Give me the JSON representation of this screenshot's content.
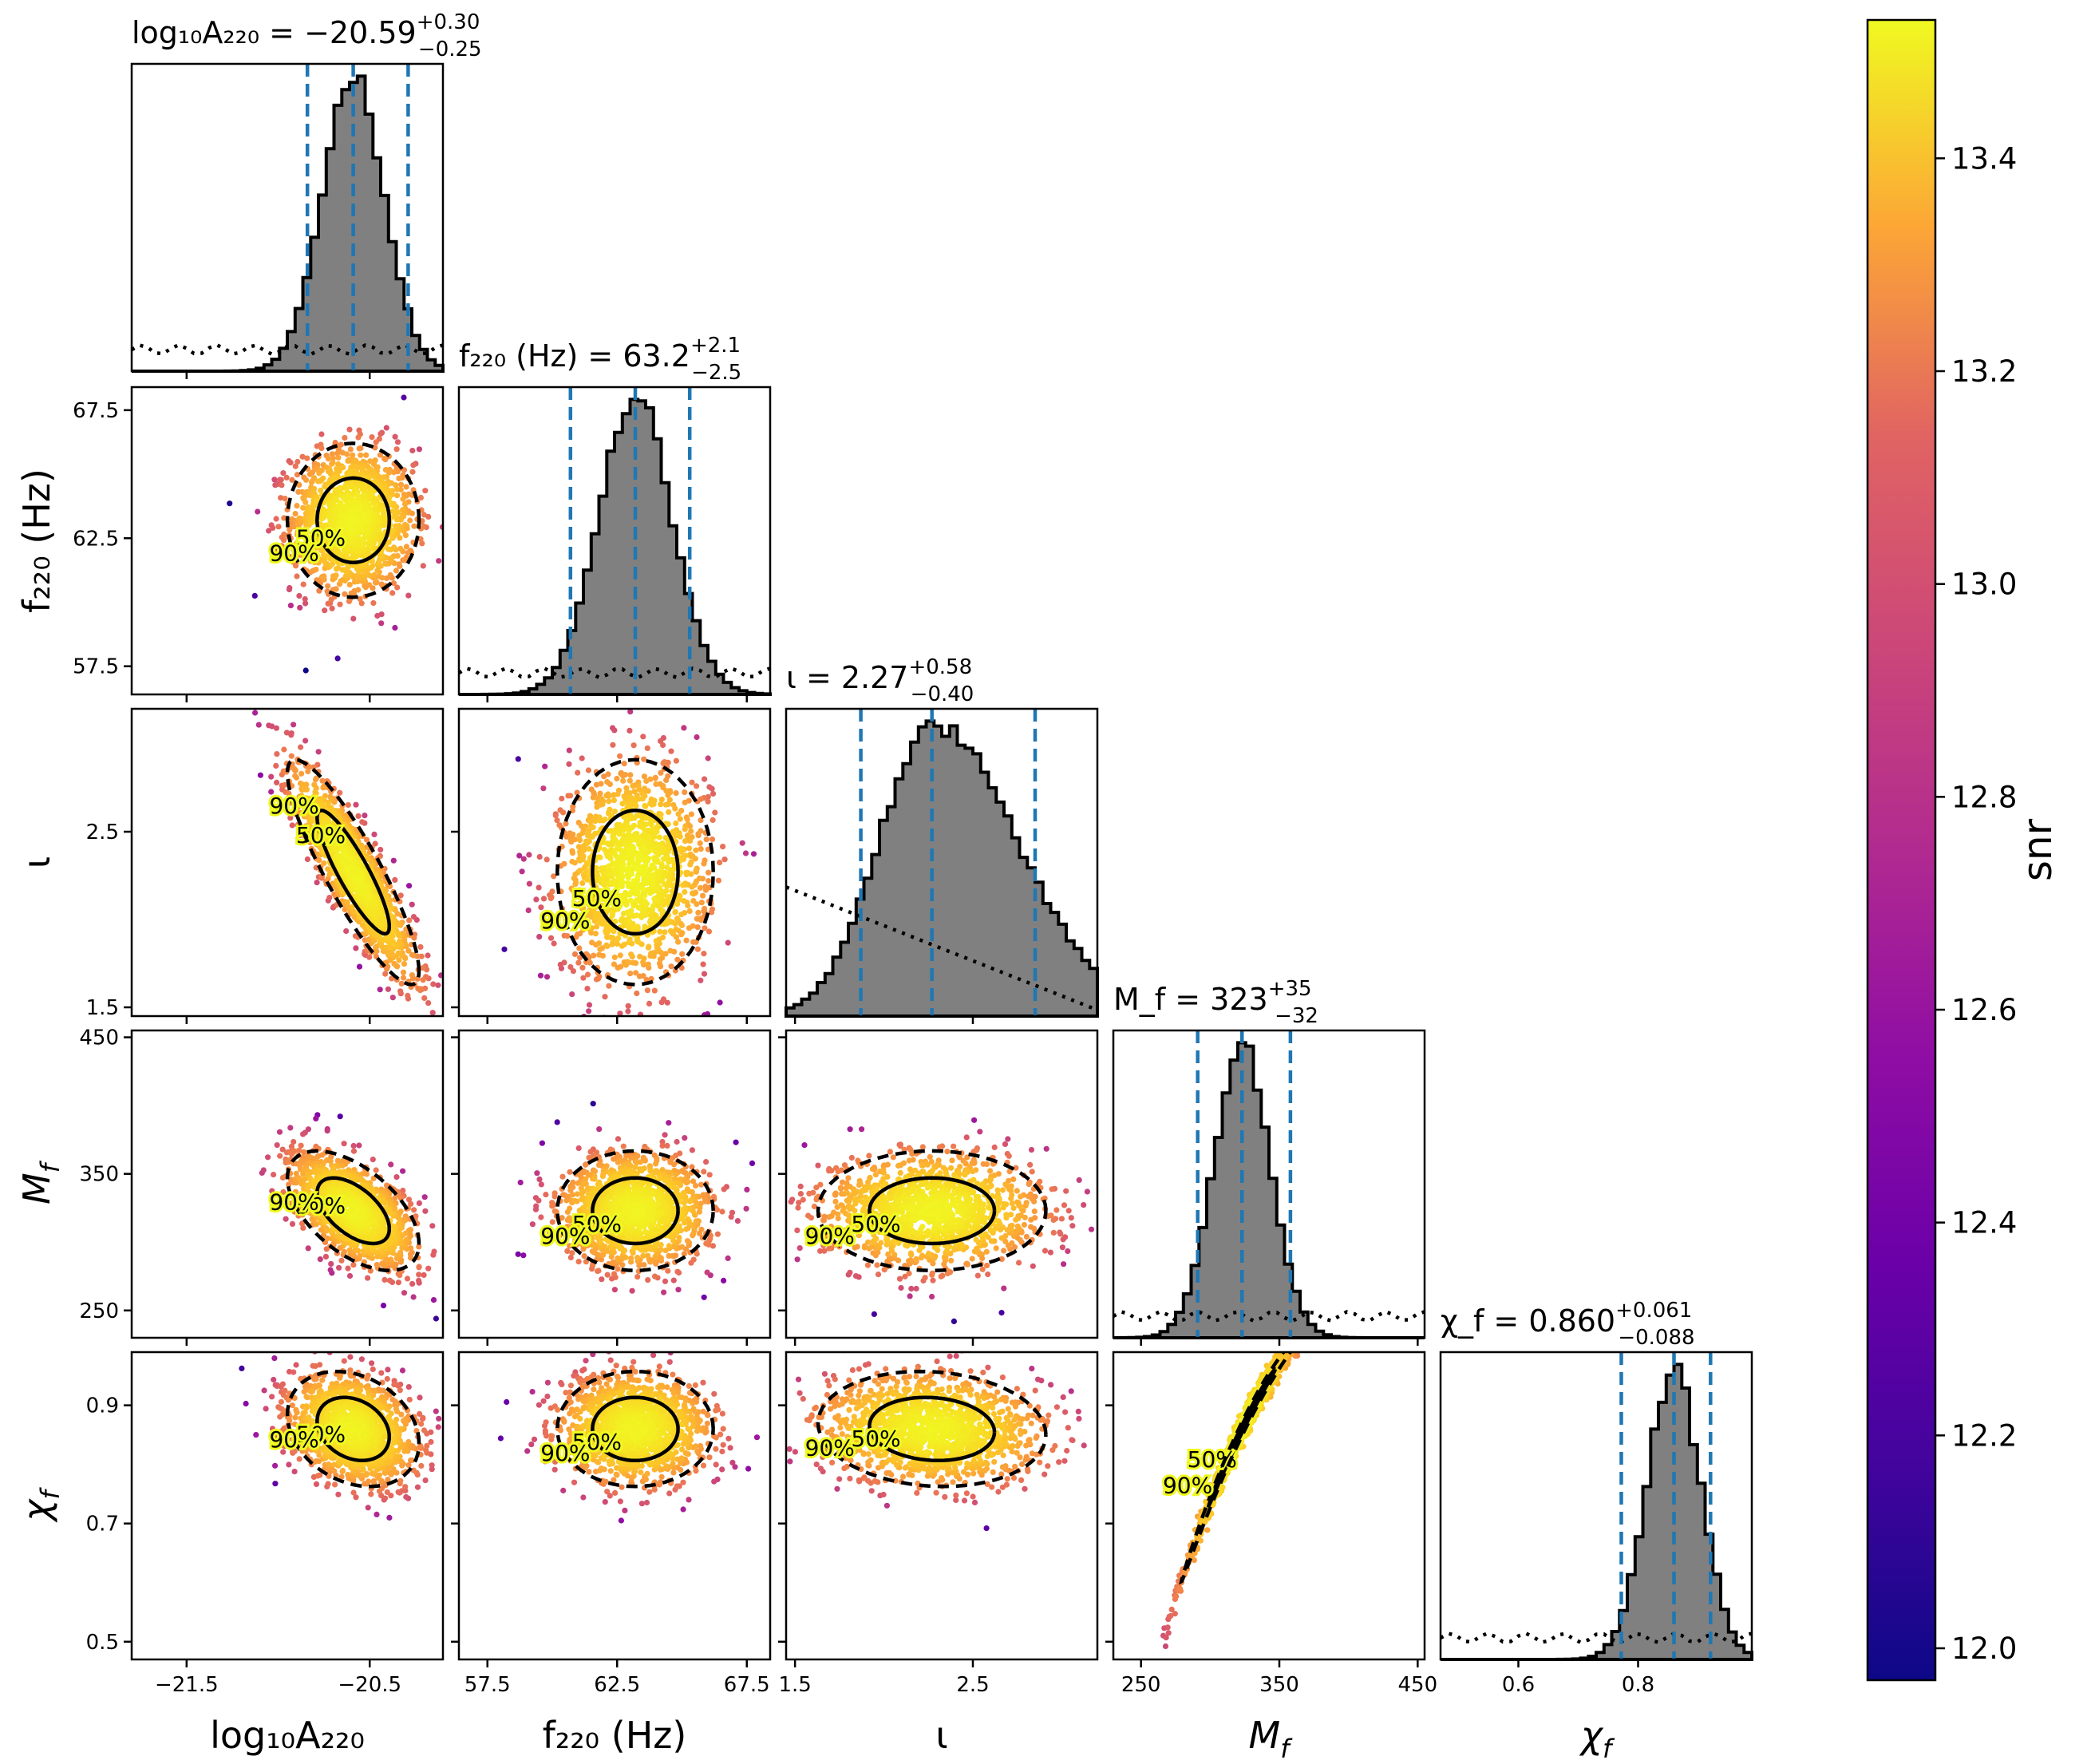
{
  "chart_data": {
    "type": "corner",
    "parameters": [
      {
        "key": "log10A220",
        "label": "log₁₀A₂₂₀",
        "title": "log₁₀A₂₂₀ = −20.59",
        "median": -20.59,
        "plus": "+0.30",
        "minus": "−0.25",
        "lo": -20.84,
        "hi": -20.29,
        "range": [
          -21.8,
          -20.1
        ],
        "ticks": [
          -21.5,
          -20.5
        ],
        "tick_labels": [
          "−21.5",
          "−20.5"
        ]
      },
      {
        "key": "f220",
        "label": "f₂₂₀ (Hz)",
        "title": "f₂₂₀ (Hz) = 63.2",
        "median": 63.2,
        "plus": "+2.1",
        "minus": "−2.5",
        "lo": 60.7,
        "hi": 65.3,
        "range": [
          56.4,
          68.4
        ],
        "ticks": [
          57.5,
          62.5,
          67.5
        ],
        "tick_labels": [
          "57.5",
          "62.5",
          "67.5"
        ]
      },
      {
        "key": "iota",
        "label": "ι",
        "title": "ι = 2.27",
        "median": 2.27,
        "plus": "+0.58",
        "minus": "−0.40",
        "lo": 1.87,
        "hi": 2.85,
        "range": [
          1.45,
          3.2
        ],
        "ticks": [
          1.5,
          2.5
        ],
        "tick_labels": [
          "1.5",
          "2.5"
        ]
      },
      {
        "key": "Mf",
        "label": "M_f",
        "title": "M_f = 323",
        "median": 323,
        "plus": "+35",
        "minus": "−32",
        "lo": 291,
        "hi": 358,
        "range": [
          230,
          455
        ],
        "ticks": [
          250,
          350,
          450
        ],
        "tick_labels": [
          "250",
          "350",
          "450"
        ]
      },
      {
        "key": "chif",
        "label": "χ_f",
        "title": "χ_f = 0.860",
        "median": 0.86,
        "plus": "+0.061",
        "minus": "−0.088",
        "lo": 0.772,
        "hi": 0.921,
        "range": [
          0.47,
          0.99
        ],
        "ticks": [
          0.5,
          0.7,
          0.9
        ],
        "tick_labels": [
          "0.5",
          "0.7",
          "0.9"
        ],
        "x_ticks": [
          0.6,
          0.8
        ],
        "x_tick_labels": [
          "0.6",
          "0.8"
        ]
      }
    ],
    "contour_levels": [
      "50%",
      "90%"
    ],
    "colorbar": {
      "label": "snr",
      "colormap": "plasma",
      "range": [
        11.97,
        13.53
      ],
      "ticks": [
        12.0,
        12.2,
        12.4,
        12.6,
        12.8,
        13.0,
        13.2,
        13.4
      ],
      "tick_labels": [
        "12.0",
        "12.2",
        "12.4",
        "12.6",
        "12.8",
        "13.0",
        "13.2",
        "13.4"
      ]
    },
    "histogram_style": {
      "fill": "#808080",
      "edge": "#000000",
      "credible_lines": "dashed",
      "credible_color": "#1f77b4",
      "prior": "dotted"
    }
  }
}
